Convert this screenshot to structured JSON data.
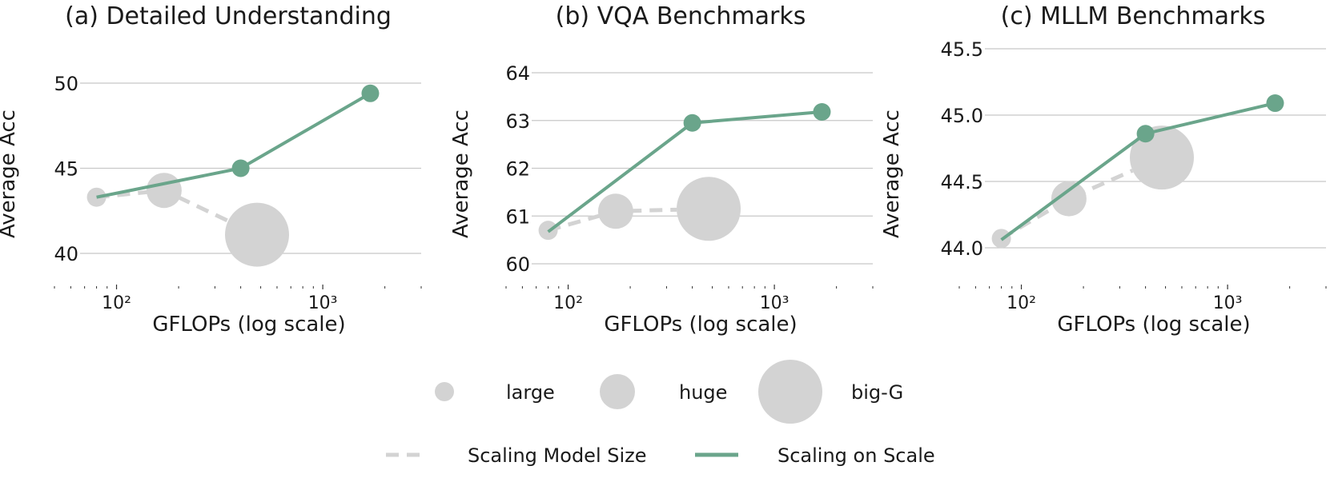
{
  "colors": {
    "grid": "#c8c8c8",
    "model_size": "#d3d3d3",
    "scale": "#6aa58b",
    "tick": "#333333"
  },
  "legend": {
    "size_items": [
      {
        "label": "large",
        "size": "large"
      },
      {
        "label": "huge",
        "size": "huge"
      },
      {
        "label": "big-G",
        "size": "big-G"
      }
    ],
    "line_items": [
      {
        "label": "Scaling Model Size",
        "style": "dashed",
        "color": "#d3d3d3"
      },
      {
        "label": "Scaling on Scale",
        "style": "solid",
        "color": "#6aa58b"
      }
    ]
  },
  "chart_data": [
    {
      "type": "scatter",
      "title": "(a) Detailed Understanding",
      "xlabel": "GFLOPs (log scale)",
      "ylabel": "Average Acc",
      "xscale": "log",
      "xlim": [
        50,
        3000
      ],
      "ylim": [
        38,
        52
      ],
      "yticks": [
        40,
        45,
        50
      ],
      "xticks": [
        {
          "value": 100,
          "label": "10²"
        },
        {
          "value": 1000,
          "label": "10³"
        }
      ],
      "grid": "y",
      "series": [
        {
          "name": "Scaling Model Size",
          "style": "dashed",
          "points": [
            {
              "x": 80,
              "y": 43.3,
              "size": "large"
            },
            {
              "x": 170,
              "y": 43.7,
              "size": "huge"
            },
            {
              "x": 480,
              "y": 41.1,
              "size": "big-G"
            }
          ]
        },
        {
          "name": "Scaling on Scale",
          "style": "solid",
          "points": [
            {
              "x": 80,
              "y": 43.3
            },
            {
              "x": 400,
              "y": 45.0
            },
            {
              "x": 1700,
              "y": 49.4
            }
          ]
        }
      ]
    },
    {
      "type": "scatter",
      "title": "(b) VQA Benchmarks",
      "xlabel": "GFLOPs (log scale)",
      "ylabel": "Average Acc",
      "xscale": "log",
      "xlim": [
        50,
        3000
      ],
      "ylim": [
        59.5,
        64.5
      ],
      "yticks": [
        60,
        61,
        62,
        63,
        64
      ],
      "xticks": [
        {
          "value": 100,
          "label": "10²"
        },
        {
          "value": 1000,
          "label": "10³"
        }
      ],
      "grid": "y",
      "series": [
        {
          "name": "Scaling Model Size",
          "style": "dashed",
          "points": [
            {
              "x": 80,
              "y": 60.7,
              "size": "large"
            },
            {
              "x": 170,
              "y": 61.1,
              "size": "huge"
            },
            {
              "x": 480,
              "y": 61.15,
              "size": "big-G"
            }
          ]
        },
        {
          "name": "Scaling on Scale",
          "style": "solid",
          "points": [
            {
              "x": 80,
              "y": 60.67
            },
            {
              "x": 400,
              "y": 62.95
            },
            {
              "x": 1700,
              "y": 63.18
            }
          ]
        }
      ]
    },
    {
      "type": "scatter",
      "title": "(c) MLLM Benchmarks",
      "xlabel": "GFLOPs (log scale)",
      "ylabel": "Average Acc",
      "xscale": "log",
      "xlim": [
        50,
        3000
      ],
      "ylim": [
        43.85,
        45.62
      ],
      "yticks": [
        44.0,
        44.5,
        45.0,
        45.5
      ],
      "yticklabels": [
        "44.0",
        "44.5",
        "45.0",
        "45.5"
      ],
      "xticks": [
        {
          "value": 100,
          "label": "10²"
        },
        {
          "value": 1000,
          "label": "10³"
        }
      ],
      "grid": "y",
      "series": [
        {
          "name": "Scaling Model Size",
          "style": "dashed",
          "points": [
            {
              "x": 80,
              "y": 44.07,
              "size": "large"
            },
            {
              "x": 170,
              "y": 44.37,
              "size": "huge"
            },
            {
              "x": 480,
              "y": 44.68,
              "size": "big-G"
            }
          ]
        },
        {
          "name": "Scaling on Scale",
          "style": "solid",
          "points": [
            {
              "x": 80,
              "y": 44.06
            },
            {
              "x": 400,
              "y": 44.86
            },
            {
              "x": 1700,
              "y": 45.09
            }
          ]
        }
      ]
    }
  ]
}
